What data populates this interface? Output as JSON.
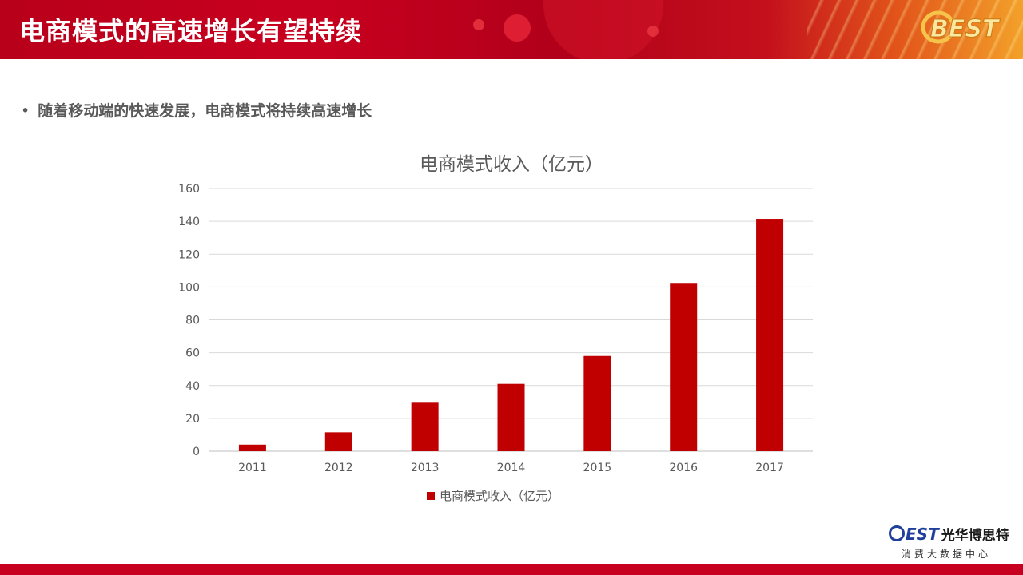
{
  "header": {
    "title": "电商模式的高速增长有望持续",
    "badge_text": "BEST"
  },
  "bullet": {
    "dot": "•",
    "text": "随着移动端的快速发展，电商模式将持续高速增长"
  },
  "chart_data": {
    "type": "bar",
    "title": "电商模式收入（亿元）",
    "categories": [
      "2011",
      "2012",
      "2013",
      "2014",
      "2015",
      "2016",
      "2017"
    ],
    "series": [
      {
        "name": "电商模式收入（亿元）",
        "values": [
          4,
          11.5,
          30,
          41,
          58,
          102.5,
          141.5
        ],
        "color": "#c00000"
      }
    ],
    "ylim": [
      0,
      160
    ],
    "yticks": [
      0,
      20,
      40,
      60,
      80,
      100,
      120,
      140,
      160
    ],
    "xlabel": "",
    "ylabel": "",
    "grid": true,
    "legend": "bottom"
  },
  "footer": {
    "logo_text": "EST",
    "brand": "光华博思特",
    "subtitle": "消费大数据中心"
  },
  "colors": {
    "banner_red": "#c8001f",
    "bar_red": "#c00000",
    "brand_blue": "#1f3f9a"
  }
}
